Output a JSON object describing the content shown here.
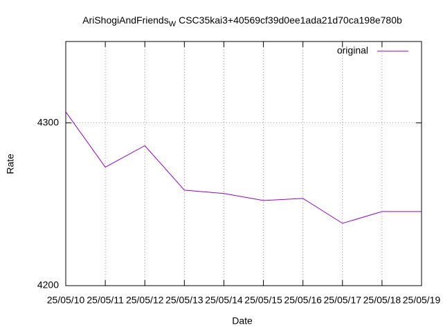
{
  "chart_data": {
    "type": "line",
    "title": "AriShogiAndFriends",
    "title_subscript": "W",
    "title_rest": "CSC35kai3+40569cf39d0ee1ada21d70ca198e780b",
    "x_label": "Date",
    "y_label": "Rate",
    "categories": [
      "25/05/10",
      "25/05/11",
      "25/05/12",
      "25/05/13",
      "25/05/14",
      "25/05/15",
      "25/05/16",
      "25/05/17",
      "25/05/18",
      "25/05/19"
    ],
    "series": [
      {
        "name": "original",
        "color": "#9400d3",
        "values": [
          4306.8,
          4272.8,
          4286.0,
          4258.7,
          4256.6,
          4252.3,
          4253.6,
          4238.3,
          4245.5,
          4245.5
        ]
      }
    ],
    "ylim": [
      4200,
      4350
    ],
    "yticks": [
      4200,
      4300
    ],
    "grid": true,
    "legend": "top-right"
  }
}
